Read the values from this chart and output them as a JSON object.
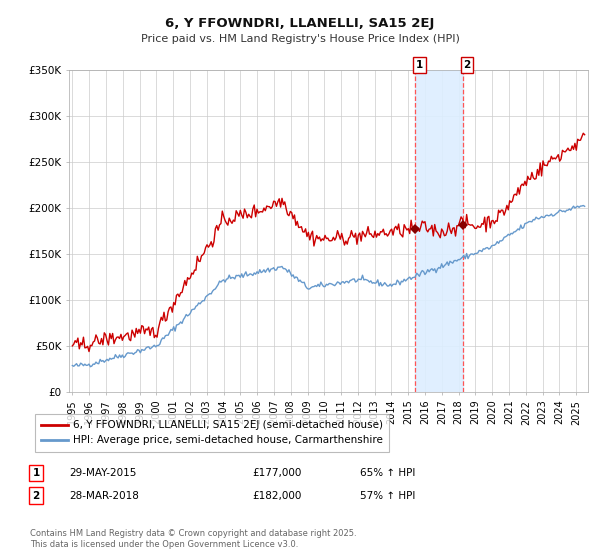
{
  "title": "6, Y FFOWNDRI, LLANELLI, SA15 2EJ",
  "subtitle": "Price paid vs. HM Land Registry's House Price Index (HPI)",
  "legend_line1": "6, Y FFOWNDRI, LLANELLI, SA15 2EJ (semi-detached house)",
  "legend_line2": "HPI: Average price, semi-detached house, Carmarthenshire",
  "annotation1_date": "29-MAY-2015",
  "annotation1_price": "£177,000",
  "annotation1_hpi": "65% ↑ HPI",
  "annotation2_date": "28-MAR-2018",
  "annotation2_price": "£182,000",
  "annotation2_hpi": "57% ↑ HPI",
  "footer": "Contains HM Land Registry data © Crown copyright and database right 2025.\nThis data is licensed under the Open Government Licence v3.0.",
  "red_line_color": "#cc0000",
  "blue_line_color": "#6699cc",
  "marker_color": "#880000",
  "shade_color": "#ddeeff",
  "vline_color": "#ff5555",
  "background_color": "#ffffff",
  "plot_bg_color": "#ffffff",
  "grid_color": "#cccccc",
  "sale1_x": 2015.41,
  "sale2_x": 2018.24,
  "sale1_y": 177000,
  "sale2_y": 182000,
  "ylim": [
    0,
    350000
  ],
  "xlim_start": 1994.8,
  "xlim_end": 2025.7,
  "yticks": [
    0,
    50000,
    100000,
    150000,
    200000,
    250000,
    300000,
    350000
  ],
  "ytick_labels": [
    "£0",
    "£50K",
    "£100K",
    "£150K",
    "£200K",
    "£250K",
    "£300K",
    "£350K"
  ]
}
